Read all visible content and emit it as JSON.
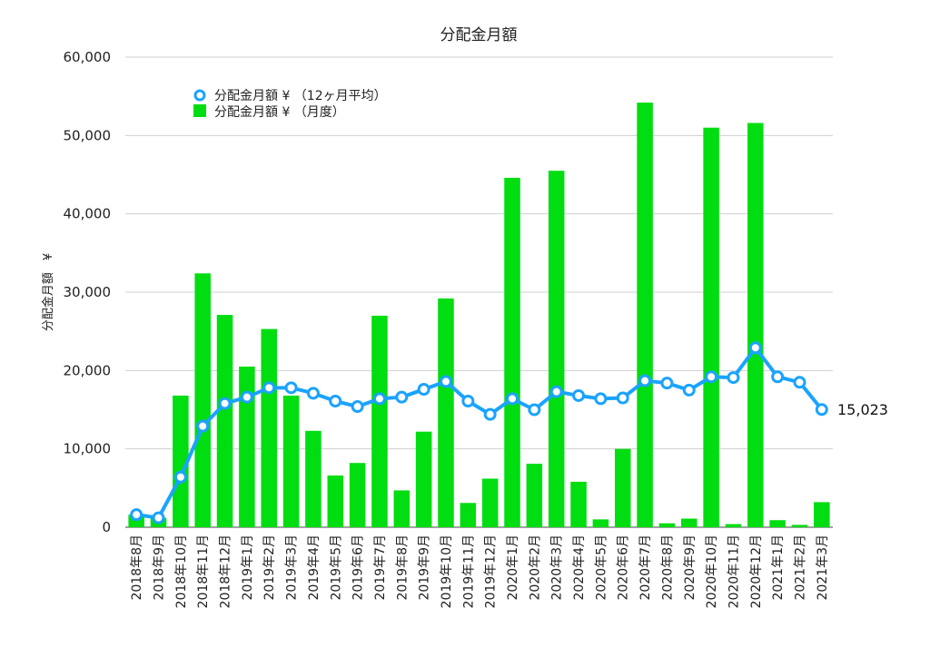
{
  "chart_data": {
    "type": "bar+line",
    "title": "分配金月額",
    "ylabel": "分配金月額　¥",
    "xlabel": "",
    "ylim": [
      0,
      60000
    ],
    "yticks": [
      "0",
      "10,000",
      "20,000",
      "30,000",
      "40,000",
      "50,000",
      "60,000"
    ],
    "grid": true,
    "legend_position": "top-left",
    "categories": [
      "2018年8月",
      "2018年9月",
      "2018年10月",
      "2018年11月",
      "2018年12月",
      "2019年1月",
      "2019年2月",
      "2019年3月",
      "2019年4月",
      "2019年5月",
      "2019年6月",
      "2019年7月",
      "2019年8月",
      "2019年9月",
      "2019年10月",
      "2019年11月",
      "2019年12月",
      "2020年1月",
      "2020年2月",
      "2020年3月",
      "2020年4月",
      "2020年5月",
      "2020年6月",
      "2020年7月",
      "2020年8月",
      "2020年9月",
      "2020年10月",
      "2020年11月",
      "2020年12月",
      "2021年1月",
      "2021年2月",
      "2021年3月"
    ],
    "series": [
      {
        "name": "分配金月額 ¥ （12ヶ月平均）",
        "type": "line",
        "color": "#1aa3ff",
        "values": [
          1600,
          1200,
          6400,
          12900,
          15800,
          16600,
          17800,
          17800,
          17100,
          16100,
          15400,
          16400,
          16600,
          17600,
          18600,
          16100,
          14400,
          16400,
          15000,
          17300,
          16800,
          16400,
          16500,
          18700,
          18400,
          17500,
          19200,
          19100,
          22900,
          19200,
          18500,
          15023
        ]
      },
      {
        "name": "分配金月額 ¥ （月度）",
        "type": "bar",
        "color": "#00dd11",
        "values": [
          1600,
          1200,
          16800,
          32400,
          27100,
          20500,
          25300,
          16800,
          12300,
          6600,
          8200,
          27000,
          4700,
          12200,
          29200,
          3100,
          6200,
          44600,
          8100,
          45500,
          5800,
          1000,
          10000,
          54200,
          500,
          1100,
          51000,
          400,
          51600,
          900,
          300,
          3200
        ]
      }
    ],
    "annotations": [
      {
        "text": "15,023",
        "category": "2021年3月"
      }
    ]
  }
}
